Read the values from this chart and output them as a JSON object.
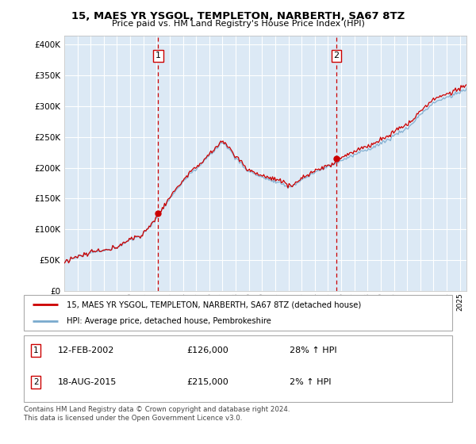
{
  "title": "15, MAES YR YSGOL, TEMPLETON, NARBERTH, SA67 8TZ",
  "subtitle": "Price paid vs. HM Land Registry's House Price Index (HPI)",
  "ylabel_ticks": [
    "£0",
    "£50K",
    "£100K",
    "£150K",
    "£200K",
    "£250K",
    "£300K",
    "£350K",
    "£400K"
  ],
  "ytick_vals": [
    0,
    50000,
    100000,
    150000,
    200000,
    250000,
    300000,
    350000,
    400000
  ],
  "ylim": [
    0,
    415000
  ],
  "xlim_start": 1995.0,
  "xlim_end": 2025.5,
  "background_color": "#dce9f5",
  "grid_color": "#ffffff",
  "hpi_color": "#7aaace",
  "price_color": "#cc0000",
  "purchase1_date": 2002.12,
  "purchase1_price": 126000,
  "purchase2_date": 2015.63,
  "purchase2_price": 215000,
  "legend_line1": "15, MAES YR YSGOL, TEMPLETON, NARBERTH, SA67 8TZ (detached house)",
  "legend_line2": "HPI: Average price, detached house, Pembrokeshire",
  "annot1_label": "1",
  "annot1_date": "12-FEB-2002",
  "annot1_price": "£126,000",
  "annot1_hpi": "28% ↑ HPI",
  "annot2_label": "2",
  "annot2_date": "18-AUG-2015",
  "annot2_price": "£215,000",
  "annot2_hpi": "2% ↑ HPI",
  "footer": "Contains HM Land Registry data © Crown copyright and database right 2024.\nThis data is licensed under the Open Government Licence v3.0."
}
